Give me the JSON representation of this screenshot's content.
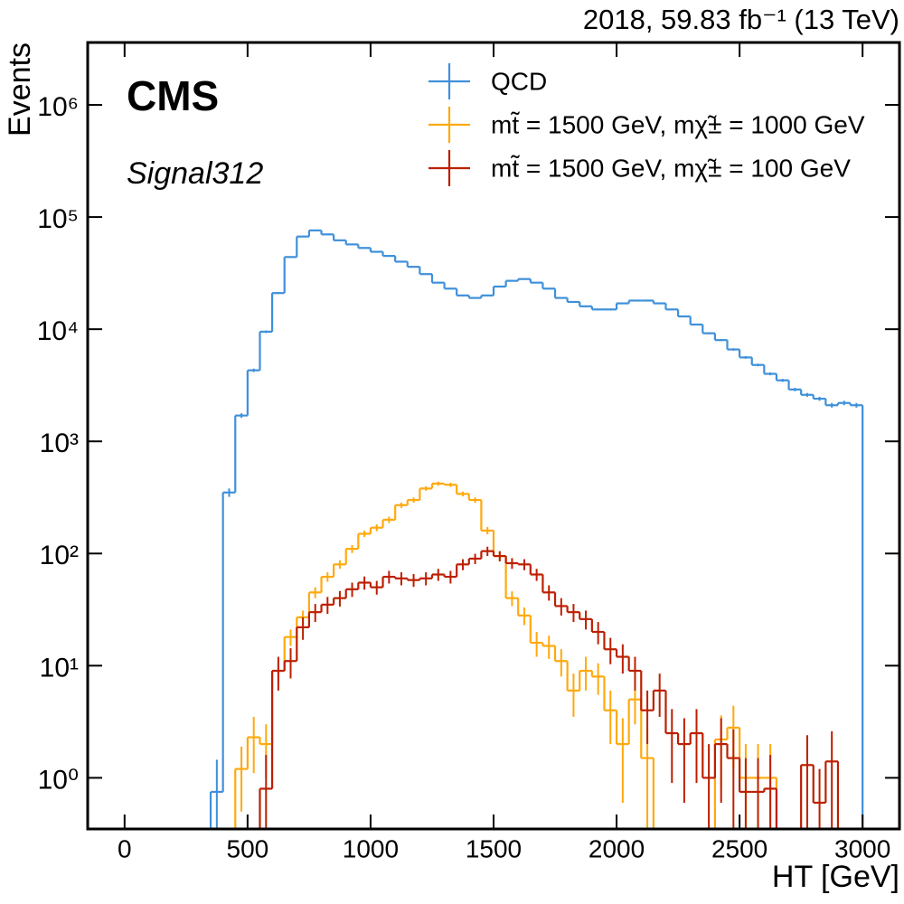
{
  "chart_data": {
    "type": "histogram",
    "title": "2018, 59.83 fb⁻¹ (13 TeV)",
    "experiment": "CMS",
    "subtitle": "Signal312",
    "x_label": "HT [GeV]",
    "y_label": "Events",
    "log_y": true,
    "legend": "upper right",
    "xlim": [
      -150,
      3150
    ],
    "ylim": [
      0.35,
      3600000
    ],
    "xticks": [
      0,
      500,
      1000,
      1500,
      2000,
      2500,
      3000
    ],
    "yticks": [
      {
        "value": 1,
        "label": "10⁰"
      },
      {
        "value": 10,
        "label": "10¹"
      },
      {
        "value": 100,
        "label": "10²"
      },
      {
        "value": 1000,
        "label": "10³"
      },
      {
        "value": 10000,
        "label": "10⁴"
      },
      {
        "value": 100000,
        "label": "10⁵"
      },
      {
        "value": 1000000,
        "label": "10⁶"
      }
    ],
    "bins": [
      0,
      50,
      100,
      150,
      200,
      250,
      300,
      350,
      400,
      450,
      500,
      550,
      600,
      650,
      700,
      750,
      800,
      850,
      900,
      950,
      1000,
      1050,
      1100,
      1150,
      1200,
      1250,
      1300,
      1350,
      1400,
      1450,
      1500,
      1550,
      1600,
      1650,
      1700,
      1750,
      1800,
      1850,
      1900,
      1950,
      2000,
      2050,
      2100,
      2150,
      2200,
      2250,
      2300,
      2350,
      2400,
      2450,
      2500,
      2550,
      2600,
      2650,
      2700,
      2750,
      2800,
      2850,
      2900,
      2950,
      3000
    ],
    "series": [
      {
        "name": "QCD",
        "color": "#3f90da",
        "values": [
          0,
          0,
          0,
          0,
          0,
          0,
          0,
          0.75,
          350,
          1700,
          4300,
          9500,
          21000,
          44000,
          67000,
          76000,
          70000,
          62000,
          57000,
          53000,
          49000,
          45000,
          40000,
          36000,
          31000,
          26000,
          23000,
          20000,
          19000,
          20000,
          24000,
          27000,
          28000,
          26000,
          23000,
          19000,
          17500,
          16000,
          15000,
          15000,
          17000,
          18000,
          18000,
          17000,
          15000,
          13000,
          11000,
          9200,
          8000,
          6600,
          5600,
          4800,
          4000,
          3500,
          2900,
          2600,
          2400,
          2100,
          2200,
          2100
        ],
        "errors": [
          0,
          0,
          0,
          0,
          0,
          0,
          0,
          0.7,
          30,
          80,
          150,
          250,
          400,
          600,
          700,
          700,
          650,
          600,
          550,
          500,
          480,
          450,
          420,
          400,
          380,
          350,
          330,
          320,
          300,
          320,
          340,
          350,
          340,
          320,
          300,
          280,
          270,
          260,
          260,
          270,
          280,
          280,
          270,
          260,
          240,
          220,
          200,
          190,
          170,
          160,
          150,
          130,
          120,
          110,
          100,
          100,
          100,
          100,
          100,
          100
        ]
      },
      {
        "name": "mt̃ = 1500 GeV, mχ̃± = 1000 GeV",
        "color": "#ffa90e",
        "values": [
          0,
          0,
          0,
          0,
          0,
          0,
          0,
          0,
          0,
          1.2,
          2.3,
          2.0,
          9,
          18,
          27,
          45,
          62,
          80,
          110,
          150,
          170,
          200,
          270,
          300,
          380,
          420,
          410,
          340,
          300,
          160,
          95,
          40,
          28,
          16,
          15,
          11,
          6,
          9,
          8,
          4,
          2,
          5,
          1.5,
          0,
          0,
          0,
          0,
          0,
          2.2,
          2.8,
          1.0,
          1.0,
          1.0,
          0,
          0,
          0,
          0,
          0,
          0,
          0
        ],
        "errors": [
          0,
          0,
          0,
          0,
          0,
          0,
          0,
          0,
          0,
          0.7,
          1.2,
          1.0,
          2,
          3,
          4,
          5,
          6,
          7,
          9,
          10,
          12,
          13,
          15,
          16,
          17,
          18,
          18,
          17,
          16,
          12,
          9,
          6,
          5,
          4,
          3.5,
          3,
          2.5,
          3,
          2.5,
          2,
          1.4,
          2,
          1.2,
          0,
          0,
          0,
          0,
          0,
          1.4,
          1.6,
          1,
          1,
          1,
          0,
          0,
          0,
          0,
          0,
          0,
          0
        ]
      },
      {
        "name": "mt̃ = 1500 GeV, mχ̃± = 100 GeV",
        "color": "#bd1f01",
        "values": [
          0,
          0,
          0,
          0,
          0,
          0,
          0,
          0,
          0,
          0,
          0,
          0.8,
          9,
          11,
          22,
          30,
          35,
          40,
          48,
          55,
          50,
          62,
          60,
          58,
          60,
          65,
          62,
          80,
          90,
          105,
          95,
          82,
          80,
          65,
          45,
          34,
          30,
          26,
          20,
          14,
          12,
          9,
          4,
          6,
          2.5,
          2,
          2.5,
          1,
          2,
          1.5,
          0.75,
          0.75,
          0.8,
          0,
          0,
          1.3,
          0.6,
          1.4,
          0,
          0
        ],
        "errors": [
          0,
          0,
          0,
          0,
          0,
          0,
          0,
          0,
          0,
          0,
          0,
          0.8,
          3,
          3.3,
          5,
          5.5,
          6,
          6.3,
          7,
          7.4,
          7,
          8,
          8,
          7.6,
          8,
          8,
          8,
          9,
          9.5,
          10,
          10,
          9,
          9,
          8,
          7,
          6,
          5.5,
          5,
          4.5,
          3.7,
          3.5,
          3,
          2,
          2.5,
          1.6,
          1.4,
          1.6,
          1,
          1.4,
          1.2,
          0.75,
          0.75,
          0.8,
          0,
          0,
          1.1,
          0.6,
          1.2,
          0,
          0
        ]
      }
    ]
  }
}
